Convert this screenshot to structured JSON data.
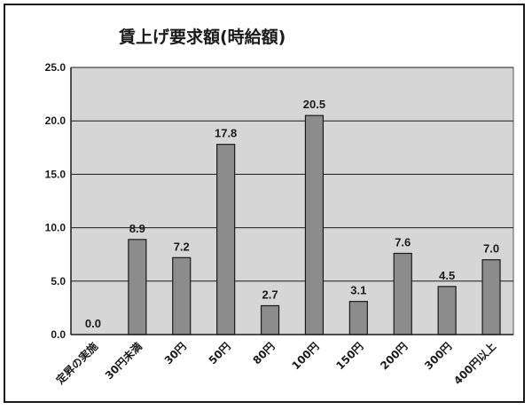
{
  "chart_data": {
    "type": "bar",
    "title": "賃上げ要求額(時給額)",
    "xlabel": "",
    "ylabel": "",
    "categories": [
      "定昇の実施",
      "30円未満",
      "30円",
      "50円",
      "80円",
      "100円",
      "150円",
      "200円",
      "300円",
      "400円以上"
    ],
    "values": [
      0.0,
      8.9,
      7.2,
      17.8,
      2.7,
      20.5,
      3.1,
      7.6,
      4.5,
      7.0
    ],
    "value_labels": [
      "0.0",
      "8.9",
      "7.2",
      "17.8",
      "2.7",
      "20.5",
      "3.1",
      "7.6",
      "4.5",
      "7.0"
    ],
    "ylim": [
      0,
      25
    ],
    "yticks": [
      0,
      5,
      10,
      15,
      20,
      25
    ],
    "ytick_labels": [
      "0.0",
      "5.0",
      "10.0",
      "15.0",
      "20.0",
      "25.0"
    ],
    "grid": true,
    "legend": "none",
    "colors": {
      "bar_fill": "#8c8c8c",
      "bar_stroke": "#1a1a1a",
      "plot_background": "#d6d6d6",
      "gridline": "#1a1a1a"
    }
  }
}
